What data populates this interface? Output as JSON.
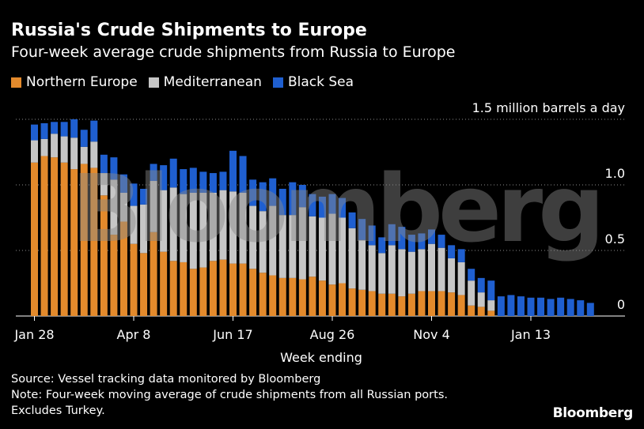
{
  "chart_data": {
    "type": "bar",
    "stacked": true,
    "title": "Russia's Crude Shipments to Europe",
    "subtitle": "Four-week average crude shipments from Russia to Europe",
    "xlabel": "Week ending",
    "ylabel": "",
    "unit_label": "1.5 million barrels a day",
    "ylim": [
      0,
      1.5
    ],
    "yticks": [
      {
        "value": 0,
        "label": "0"
      },
      {
        "value": 0.5,
        "label": "0.5"
      },
      {
        "value": 1.0,
        "label": "1.0"
      },
      {
        "value": 1.5,
        "label": "1.5 million barrels a day"
      }
    ],
    "xtick_labels": [
      {
        "index": 0,
        "label": "Jan 28"
      },
      {
        "index": 10,
        "label": "Apr 8"
      },
      {
        "index": 20,
        "label": "Jun 17"
      },
      {
        "index": 30,
        "label": "Aug 26"
      },
      {
        "index": 40,
        "label": "Nov 4"
      },
      {
        "index": 50,
        "label": "Jan 13"
      }
    ],
    "legend_position": "top-left",
    "grid": "horizontal dotted",
    "series": [
      {
        "name": "Northern Europe",
        "color": "#e38a2c",
        "values": [
          1.17,
          1.22,
          1.21,
          1.17,
          1.12,
          1.16,
          1.13,
          0.92,
          0.62,
          0.72,
          0.55,
          0.48,
          0.64,
          0.49,
          0.42,
          0.41,
          0.36,
          0.37,
          0.42,
          0.43,
          0.4,
          0.4,
          0.36,
          0.33,
          0.31,
          0.29,
          0.29,
          0.28,
          0.3,
          0.27,
          0.24,
          0.25,
          0.21,
          0.2,
          0.19,
          0.17,
          0.17,
          0.15,
          0.17,
          0.19,
          0.19,
          0.19,
          0.18,
          0.16,
          0.08,
          0.07,
          0.04,
          0.0,
          0.0,
          0.0,
          0.0,
          0.0,
          0.0,
          0.0,
          0.0,
          0.0,
          0.0
        ]
      },
      {
        "name": "Mediterranean",
        "color": "#c6c6c6",
        "values": [
          0.17,
          0.13,
          0.18,
          0.2,
          0.24,
          0.13,
          0.2,
          0.17,
          0.42,
          0.22,
          0.29,
          0.37,
          0.39,
          0.47,
          0.56,
          0.52,
          0.58,
          0.57,
          0.52,
          0.53,
          0.55,
          0.54,
          0.48,
          0.47,
          0.53,
          0.48,
          0.48,
          0.55,
          0.46,
          0.48,
          0.54,
          0.5,
          0.46,
          0.38,
          0.35,
          0.31,
          0.37,
          0.36,
          0.32,
          0.32,
          0.36,
          0.33,
          0.26,
          0.25,
          0.19,
          0.11,
          0.08,
          0.0,
          0.0,
          0.0,
          0.0,
          0.0,
          0.0,
          0.0,
          0.0,
          0.0,
          0.0
        ]
      },
      {
        "name": "Black Sea",
        "color": "#1f5fd0",
        "values": [
          0.12,
          0.12,
          0.09,
          0.11,
          0.14,
          0.13,
          0.16,
          0.14,
          0.17,
          0.14,
          0.17,
          0.12,
          0.13,
          0.19,
          0.22,
          0.19,
          0.19,
          0.16,
          0.15,
          0.14,
          0.31,
          0.28,
          0.2,
          0.22,
          0.21,
          0.2,
          0.25,
          0.17,
          0.17,
          0.16,
          0.15,
          0.15,
          0.12,
          0.16,
          0.15,
          0.12,
          0.16,
          0.17,
          0.13,
          0.12,
          0.11,
          0.1,
          0.1,
          0.1,
          0.09,
          0.11,
          0.15,
          0.15,
          0.16,
          0.15,
          0.14,
          0.14,
          0.13,
          0.14,
          0.13,
          0.12,
          0.1
        ]
      }
    ]
  },
  "footnotes": [
    "Source: Vessel tracking data monitored by Bloomberg",
    "Note: Four-week moving average of crude shipments from all Russian ports.",
    "Excludes Turkey."
  ],
  "brand": "Bloomberg",
  "watermark": "Bloomberg"
}
